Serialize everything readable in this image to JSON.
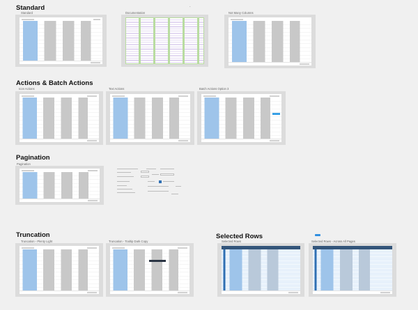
{
  "sections": {
    "standard": "Standard",
    "actions": "Actions & Batch Actions",
    "pagination": "Pagination",
    "truncation": "Truncation",
    "selected": "Selected Rows"
  },
  "frames": {
    "standard": "Standard",
    "documentation": "Documentation",
    "not_many_columns": "Not Many Columns",
    "icon_actions": "Icon Actions",
    "text_actions": "Text Actions",
    "batch_actions_option_3": "Batch Actions Option 3",
    "pagination": "Pagination",
    "truncation_plenty_light": "Truncation - Plenty Light",
    "truncation_tooltip_dark_copy": "Truncation - Tooltip Dark Copy",
    "selected_rows": "Selected Rows",
    "selected_rows_across_all_pages": "Selected Rows - Across All Pages"
  },
  "colors": {
    "canvas": "#f0f0f0",
    "frame": "#dcdcdc",
    "link": "#9ec4ea",
    "accent": "#2f8fe0",
    "header_dark": "#33557a"
  },
  "decor": {
    "standard_dash": "-"
  }
}
